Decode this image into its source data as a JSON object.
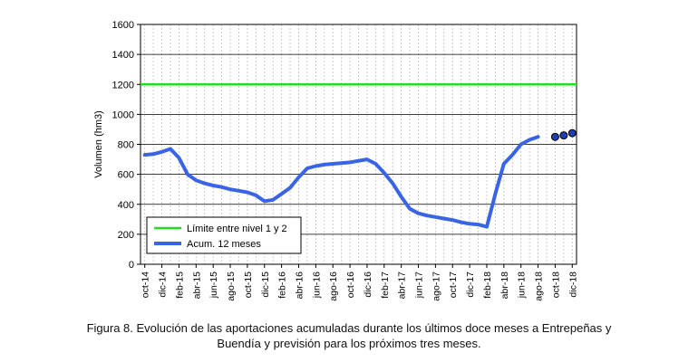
{
  "chart_data": {
    "type": "line",
    "ylabel": "Volumen (hm3)",
    "ylim": [
      0,
      1600
    ],
    "yticks": [
      "0",
      "200",
      "400",
      "600",
      "800",
      "1000",
      "1200",
      "1400",
      "1600"
    ],
    "x_tick_labels": [
      "oct-14",
      "dic-14",
      "feb-15",
      "abr-15",
      "jun-15",
      "ago-15",
      "oct-15",
      "dic-15",
      "feb-16",
      "abr-16",
      "jun-16",
      "ago-16",
      "oct-16",
      "dic-16",
      "feb-17",
      "abr-17",
      "jun-17",
      "ago-17",
      "oct-17",
      "dic-17",
      "feb-18",
      "abr-18",
      "jun-18",
      "ago-18",
      "oct-18",
      "dic-18"
    ],
    "months": [
      "oct-14",
      "nov-14",
      "dic-14",
      "ene-15",
      "feb-15",
      "mar-15",
      "abr-15",
      "may-15",
      "jun-15",
      "jul-15",
      "ago-15",
      "sep-15",
      "oct-15",
      "nov-15",
      "dic-15",
      "ene-16",
      "feb-16",
      "mar-16",
      "abr-16",
      "may-16",
      "jun-16",
      "jul-16",
      "ago-16",
      "sep-16",
      "oct-16",
      "nov-16",
      "dic-16",
      "ene-17",
      "feb-17",
      "mar-17",
      "abr-17",
      "may-17",
      "jun-17",
      "jul-17",
      "ago-17",
      "sep-17",
      "oct-17",
      "nov-17",
      "dic-17",
      "ene-18",
      "feb-18",
      "mar-18",
      "abr-18",
      "may-18",
      "jun-18",
      "jul-18",
      "ago-18",
      "sep-18",
      "oct-18",
      "nov-18",
      "dic-18"
    ],
    "grid": true,
    "legend_position": "bottom-left",
    "series": [
      {
        "name": "Límite entre nivel 1 y 2",
        "color": "#22dd22",
        "constant": 1200
      },
      {
        "name": "Acum. 12 meses",
        "color": "#3a64e6",
        "start_month": "oct-14",
        "values": [
          730,
          735,
          750,
          770,
          710,
          600,
          560,
          540,
          525,
          515,
          500,
          490,
          480,
          460,
          420,
          430,
          470,
          510,
          580,
          640,
          655,
          665,
          670,
          675,
          680,
          690,
          700,
          670,
          610,
          540,
          450,
          370,
          340,
          325,
          315,
          305,
          295,
          280,
          270,
          265,
          250,
          470,
          670,
          730,
          800,
          830,
          850
        ]
      },
      {
        "name": "Previsión",
        "color": "#1f3fb0",
        "start_month": "oct-18",
        "values": [
          850,
          860,
          875
        ],
        "marker": "circle"
      }
    ]
  },
  "caption": {
    "line1": "Figura 8. Evolución de las aportaciones acumuladas durante los últimos doce meses a Entrepeñas y",
    "line2": "Buendía y previsión para los próximos tres meses."
  }
}
